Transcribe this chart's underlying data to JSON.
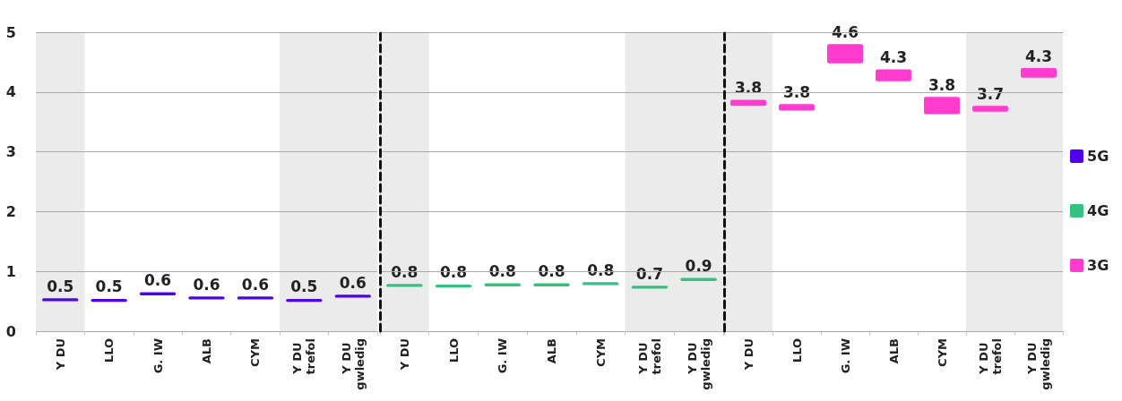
{
  "chart_data": [
    {
      "type": "bar",
      "categories": [
        "Y DU",
        "LLO",
        "G. IW",
        "ALB",
        "CYM",
        "Y DU trefol",
        "Y DU gwledig"
      ],
      "series": [
        {
          "name": "5G",
          "color": "#4f00ee",
          "base": [
            0.5,
            0.49,
            0.6,
            0.53,
            0.53,
            0.49,
            0.56
          ],
          "values": [
            0.05,
            0.05,
            0.05,
            0.05,
            0.05,
            0.05,
            0.05
          ]
        }
      ],
      "ylim": [
        0,
        5
      ],
      "yticks": [
        0,
        1,
        2,
        3,
        4,
        5
      ],
      "grid": "y",
      "legend": "right",
      "annotations": [
        {
          "text": "0.5",
          "x": "Y DU",
          "y": 0.55
        },
        {
          "text": "0.5",
          "x": "LLO",
          "y": 0.54
        },
        {
          "text": "0.6",
          "x": "G. IW",
          "y": 0.65
        },
        {
          "text": "0.6",
          "x": "ALB",
          "y": 0.58
        },
        {
          "text": "0.6",
          "x": "CYM",
          "y": 0.58
        },
        {
          "text": "0.5",
          "x": "Y DU trefol",
          "y": 0.54
        },
        {
          "text": "0.6",
          "x": "Y DU gwledig",
          "y": 0.61
        }
      ],
      "bands": [
        {
          "axis": "x",
          "from": "Y DU",
          "to": "Y DU",
          "color": "#ebebeb"
        },
        {
          "axis": "x",
          "from": "Y DU trefol",
          "to": "Y DU gwledig",
          "color": "#ebebeb"
        }
      ]
    },
    {
      "type": "bar",
      "categories": [
        "Y DU",
        "LLO",
        "G. IW",
        "ALB",
        "CYM",
        "Y DU trefol",
        "Y DU gwledig"
      ],
      "series": [
        {
          "name": "4G",
          "color": "#35c17f",
          "base": [
            0.74,
            0.73,
            0.75,
            0.75,
            0.77,
            0.71,
            0.84
          ],
          "values": [
            0.05,
            0.05,
            0.05,
            0.05,
            0.05,
            0.05,
            0.05
          ]
        }
      ],
      "ylim": [
        0,
        5
      ],
      "yticks": [
        0,
        1,
        2,
        3,
        4,
        5
      ],
      "grid": "y",
      "tick_labels": "x",
      "legend": "right",
      "annotations": [
        {
          "text": "0.8",
          "x": "Y DU",
          "y": 0.79
        },
        {
          "text": "0.8",
          "x": "LLO",
          "y": 0.78
        },
        {
          "text": "0.8",
          "x": "G. IW",
          "y": 0.8
        },
        {
          "text": "0.8",
          "x": "ALB",
          "y": 0.8
        },
        {
          "text": "0.8",
          "x": "CYM",
          "y": 0.82
        },
        {
          "text": "0.7",
          "x": "Y DU trefol",
          "y": 0.76
        },
        {
          "text": "0.9",
          "x": "Y DU gwledig",
          "y": 0.89
        }
      ],
      "bands": [
        {
          "axis": "x",
          "from": "Y DU",
          "to": "Y DU",
          "color": "#ebebeb"
        },
        {
          "axis": "x",
          "from": "Y DU trefol",
          "to": "Y DU gwledig",
          "color": "#ebebeb"
        }
      ]
    },
    {
      "type": "bar",
      "categories": [
        "Y DU",
        "LLO",
        "G. IW",
        "ALB",
        "CYM",
        "Y DU trefol",
        "Y DU gwledig"
      ],
      "series": [
        {
          "name": "3G",
          "color": "#ff3ccd",
          "base": [
            3.77,
            3.69,
            4.48,
            4.18,
            3.63,
            3.67,
            4.24
          ],
          "values": [
            0.1,
            0.11,
            0.32,
            0.2,
            0.29,
            0.1,
            0.16
          ]
        }
      ],
      "ylim": [
        0,
        5
      ],
      "yticks": [
        0,
        1,
        2,
        3,
        4,
        5
      ],
      "grid": "y",
      "tick_labels": "x",
      "legend": "right",
      "annotations": [
        {
          "text": "3.8",
          "x": "Y DU",
          "y": 3.87
        },
        {
          "text": "3.8",
          "x": "LLO",
          "y": 3.8
        },
        {
          "text": "4.6",
          "x": "G. IW",
          "y": 4.8
        },
        {
          "text": "4.3",
          "x": "ALB",
          "y": 4.38
        },
        {
          "text": "3.8",
          "x": "CYM",
          "y": 3.92
        },
        {
          "text": "3.7",
          "x": "Y DU trefol",
          "y": 3.77
        },
        {
          "text": "4.3",
          "x": "Y DU gwledig",
          "y": 4.4
        }
      ],
      "bands": [
        {
          "axis": "x",
          "from": "Y DU",
          "to": "Y DU",
          "color": "#ebebeb"
        },
        {
          "axis": "x",
          "from": "Y DU trefol",
          "to": "Y DU gwledig",
          "color": "#ebebeb"
        }
      ]
    }
  ]
}
